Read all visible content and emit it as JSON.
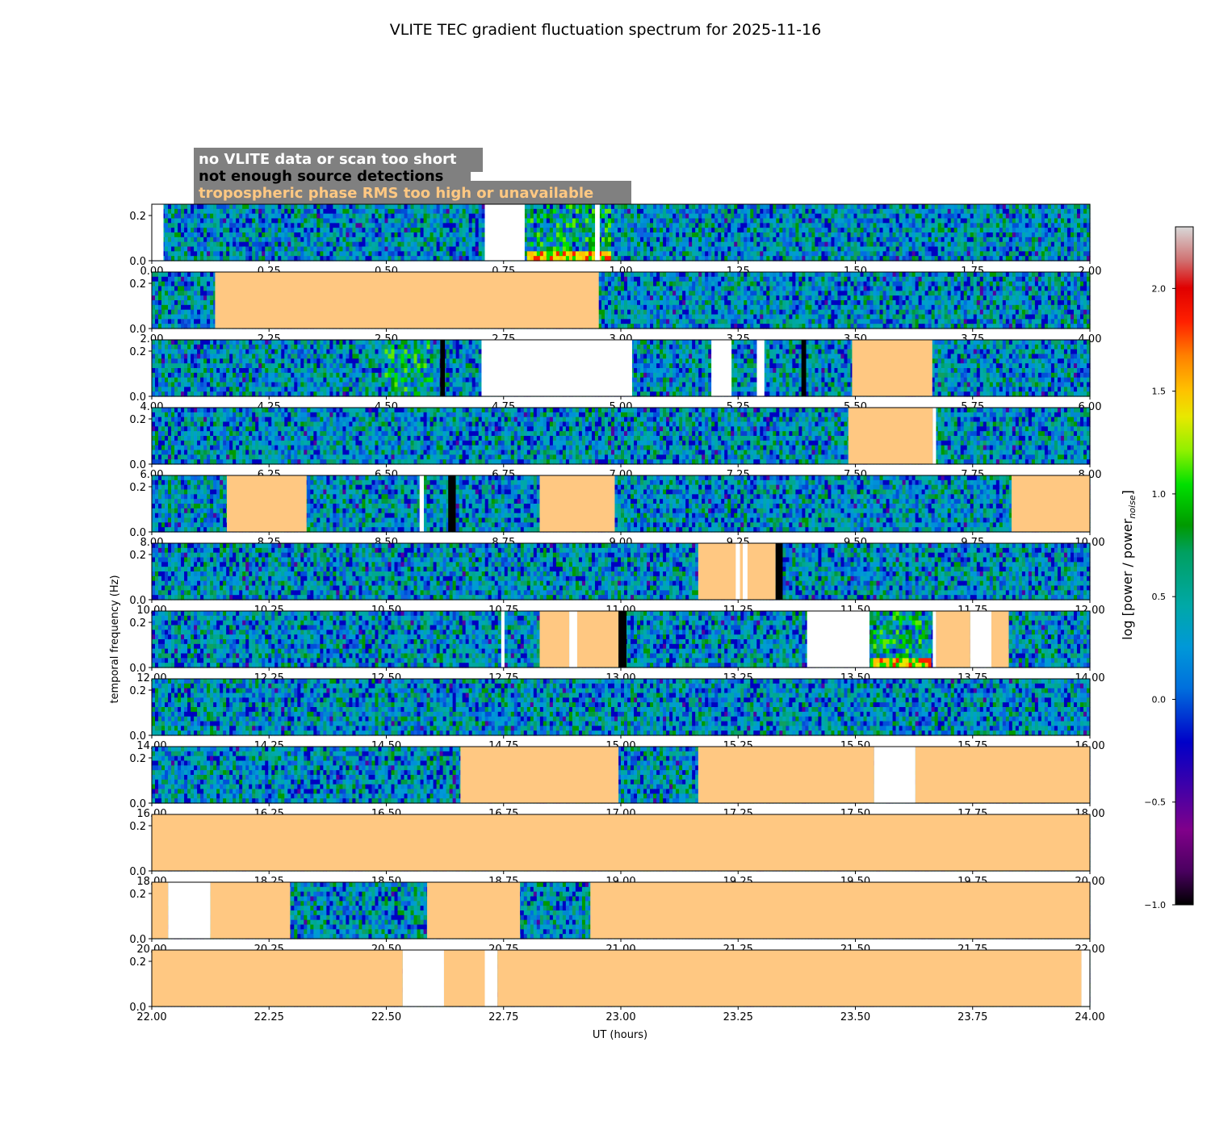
{
  "title": "VLITE TEC gradient fluctuation spectrum for 2025-11-16",
  "legend": [
    {
      "label": "no VLITE data or scan too short",
      "color": "#ffffff",
      "box": "#808080"
    },
    {
      "label": "not enough source detections",
      "color": "#000000",
      "box": "#808080"
    },
    {
      "label": "tropospheric phase RMS too high or unavailable",
      "color": "#ffc882",
      "box": "#808080"
    }
  ],
  "colorbar_label": "log [power / power",
  "colorbar_label_sub": "noise",
  "colorbar_label_end": "]",
  "colors": {
    "tropo": "#ffc882",
    "nodata": "#ffffff",
    "nodetect": "#000000"
  },
  "chart_data": {
    "type": "heatmap",
    "title": "VLITE TEC gradient fluctuation spectrum for 2025-11-16",
    "xlabel": "UT (hours)",
    "ylabel": "temporal frequency (Hz)",
    "ylim": [
      0,
      0.25
    ],
    "yticks": [
      "0.0",
      "0.2"
    ],
    "colorbar": {
      "range": [
        -1.0,
        2.3
      ],
      "ticks": [
        "−1.0",
        "−0.5",
        "0.0",
        "0.5",
        "1.0",
        "1.5",
        "2.0"
      ],
      "tick_values": [
        -1.0,
        -0.5,
        0.0,
        0.5,
        1.0,
        1.5,
        2.0
      ]
    },
    "panels": [
      {
        "range": [
          0,
          2
        ],
        "ticks": [
          "0.00",
          "0.25",
          "0.50",
          "0.75",
          "1.00",
          "1.25",
          "1.50",
          "1.75",
          "2.00"
        ],
        "masks": [
          {
            "type": "nodata",
            "start": 0.0,
            "end": 0.025
          },
          {
            "type": "nodata",
            "start": 0.71,
            "end": 0.795
          },
          {
            "type": "nodata",
            "start": 0.945,
            "end": 0.955
          }
        ],
        "features": [
          {
            "start": 0.8,
            "end": 0.98,
            "level": "high"
          }
        ]
      },
      {
        "range": [
          2,
          4
        ],
        "ticks": [
          "2.00",
          "2.25",
          "2.50",
          "2.75",
          "3.00",
          "3.25",
          "3.50",
          "3.75",
          "4.00"
        ],
        "masks": [
          {
            "type": "tropo",
            "start": 2.135,
            "end": 2.953
          }
        ]
      },
      {
        "range": [
          4,
          6
        ],
        "ticks": [
          "4.00",
          "4.25",
          "4.50",
          "4.75",
          "5.00",
          "5.25",
          "5.50",
          "5.75",
          "6.00"
        ],
        "masks": [
          {
            "type": "nodetect",
            "start": 4.615,
            "end": 4.625
          },
          {
            "type": "nodata",
            "start": 4.703,
            "end": 5.024
          },
          {
            "type": "nodata",
            "start": 5.193,
            "end": 5.236
          },
          {
            "type": "nodata",
            "start": 5.29,
            "end": 5.306
          },
          {
            "type": "nodetect",
            "start": 5.385,
            "end": 5.395
          },
          {
            "type": "tropo",
            "start": 5.493,
            "end": 5.664
          }
        ],
        "features": [
          {
            "start": 4.5,
            "end": 4.6,
            "level": "mid"
          }
        ]
      },
      {
        "range": [
          6,
          8
        ],
        "ticks": [
          "6.00",
          "6.25",
          "6.50",
          "6.75",
          "7.00",
          "7.25",
          "7.50",
          "7.75",
          "8.00"
        ],
        "masks": [
          {
            "type": "tropo",
            "start": 7.485,
            "end": 7.665
          },
          {
            "type": "nodata",
            "start": 7.665,
            "end": 7.672
          }
        ]
      },
      {
        "range": [
          8,
          10
        ],
        "ticks": [
          "8.00",
          "8.25",
          "8.50",
          "8.75",
          "9.00",
          "9.25",
          "9.50",
          "9.75",
          "10.00"
        ],
        "masks": [
          {
            "type": "tropo",
            "start": 8.16,
            "end": 8.33
          },
          {
            "type": "nodata",
            "start": 8.571,
            "end": 8.58
          },
          {
            "type": "nodetect",
            "start": 8.632,
            "end": 8.648
          },
          {
            "type": "tropo",
            "start": 8.827,
            "end": 8.987
          },
          {
            "type": "tropo",
            "start": 9.833,
            "end": 10.0
          }
        ]
      },
      {
        "range": [
          10,
          12
        ],
        "ticks": [
          "10.00",
          "10.25",
          "10.50",
          "10.75",
          "11.00",
          "11.25",
          "11.50",
          "11.75",
          "12.00"
        ],
        "masks": [
          {
            "type": "tropo",
            "start": 11.165,
            "end": 11.33
          },
          {
            "type": "nodata",
            "start": 11.245,
            "end": 11.254
          },
          {
            "type": "nodata",
            "start": 11.26,
            "end": 11.27
          },
          {
            "type": "nodetect",
            "start": 11.33,
            "end": 11.345
          }
        ]
      },
      {
        "range": [
          12,
          14
        ],
        "ticks": [
          "12.00",
          "12.25",
          "12.50",
          "12.75",
          "13.00",
          "13.25",
          "13.50",
          "13.75",
          "14.00"
        ],
        "masks": [
          {
            "type": "nodata",
            "start": 12.745,
            "end": 12.752
          },
          {
            "type": "tropo",
            "start": 12.827,
            "end": 12.89
          },
          {
            "type": "nodata",
            "start": 12.89,
            "end": 12.907
          },
          {
            "type": "tropo",
            "start": 12.907,
            "end": 12.995
          },
          {
            "type": "nodetect",
            "start": 12.995,
            "end": 13.012
          },
          {
            "type": "nodata",
            "start": 13.397,
            "end": 13.53
          },
          {
            "type": "nodata",
            "start": 13.665,
            "end": 13.672
          },
          {
            "type": "tropo",
            "start": 13.672,
            "end": 13.745
          },
          {
            "type": "nodata",
            "start": 13.745,
            "end": 13.79
          },
          {
            "type": "tropo",
            "start": 13.79,
            "end": 13.827
          }
        ],
        "features": [
          {
            "start": 13.53,
            "end": 13.66,
            "level": "high"
          }
        ]
      },
      {
        "range": [
          14,
          16
        ],
        "ticks": [
          "14.00",
          "14.25",
          "14.50",
          "14.75",
          "15.00",
          "15.25",
          "15.50",
          "15.75",
          "16.00"
        ],
        "masks": []
      },
      {
        "range": [
          16,
          18
        ],
        "ticks": [
          "16.00",
          "16.25",
          "16.50",
          "16.75",
          "17.00",
          "17.25",
          "17.50",
          "17.75",
          "18.00"
        ],
        "masks": [
          {
            "type": "tropo",
            "start": 16.658,
            "end": 16.995
          },
          {
            "type": "tropo",
            "start": 17.165,
            "end": 17.54
          },
          {
            "type": "nodata",
            "start": 17.54,
            "end": 17.628
          },
          {
            "type": "tropo",
            "start": 17.628,
            "end": 18.0
          }
        ]
      },
      {
        "range": [
          18,
          20
        ],
        "ticks": [
          "18.00",
          "18.25",
          "18.50",
          "18.75",
          "19.00",
          "19.25",
          "19.50",
          "19.75",
          "20.00"
        ],
        "masks": [
          {
            "type": "tropo",
            "start": 18.0,
            "end": 20.0
          }
        ]
      },
      {
        "range": [
          20,
          22
        ],
        "ticks": [
          "20.00",
          "20.25",
          "20.50",
          "20.75",
          "21.00",
          "21.25",
          "21.50",
          "21.75",
          "22.00"
        ],
        "masks": [
          {
            "type": "tropo",
            "start": 20.0,
            "end": 20.035
          },
          {
            "type": "nodata",
            "start": 20.035,
            "end": 20.125
          },
          {
            "type": "tropo",
            "start": 20.125,
            "end": 20.295
          },
          {
            "type": "tropo",
            "start": 20.587,
            "end": 20.785
          },
          {
            "type": "tropo",
            "start": 20.935,
            "end": 22.0
          }
        ]
      },
      {
        "range": [
          22,
          24
        ],
        "ticks": [
          "22.00",
          "22.25",
          "22.50",
          "22.75",
          "23.00",
          "23.25",
          "23.50",
          "23.75",
          "24.00"
        ],
        "masks": [
          {
            "type": "tropo",
            "start": 22.0,
            "end": 22.535
          },
          {
            "type": "nodata",
            "start": 22.535,
            "end": 22.623
          },
          {
            "type": "tropo",
            "start": 22.623,
            "end": 22.71
          },
          {
            "type": "nodata",
            "start": 22.71,
            "end": 22.737
          },
          {
            "type": "tropo",
            "start": 22.737,
            "end": 23.982
          },
          {
            "type": "nodata",
            "start": 23.982,
            "end": 24.0
          }
        ]
      }
    ]
  }
}
